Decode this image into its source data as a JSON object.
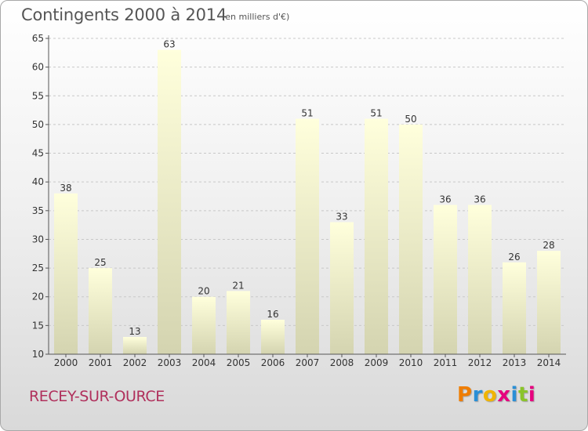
{
  "header": {
    "title": "Contingents 2000 à 2014",
    "unit": "(en milliers d'€)"
  },
  "footer": {
    "commune": "RECEY-SUR-OURCE",
    "logo_text": "Proxiti"
  },
  "colors": {
    "bar_top": "#ffffdc",
    "bar_bottom": "#d4d4b0",
    "axis": "#555555",
    "grid": "#c8c8c8",
    "commune": "#b0305c",
    "logo_letters": [
      "#ef7d00",
      "#2a8fd6",
      "#f0b400",
      "#e6007e",
      "#2a8fd6",
      "#8ac429",
      "#e6007e"
    ]
  },
  "chart_data": {
    "type": "bar",
    "title": "Contingents 2000 à 2014",
    "subtitle": "(en milliers d'€)",
    "xlabel": "",
    "ylabel": "",
    "categories": [
      "2000",
      "2001",
      "2002",
      "2003",
      "2004",
      "2005",
      "2006",
      "2007",
      "2008",
      "2009",
      "2010",
      "2011",
      "2012",
      "2013",
      "2014"
    ],
    "values": [
      38,
      25,
      13,
      63,
      20,
      21,
      16,
      51,
      33,
      51,
      50,
      36,
      36,
      26,
      28
    ],
    "ylim": [
      10,
      65
    ],
    "yticks": [
      10,
      15,
      20,
      25,
      30,
      35,
      40,
      45,
      50,
      55,
      60,
      65
    ],
    "grid": "horizontal dashed",
    "legend": "none",
    "data_labels": true
  }
}
